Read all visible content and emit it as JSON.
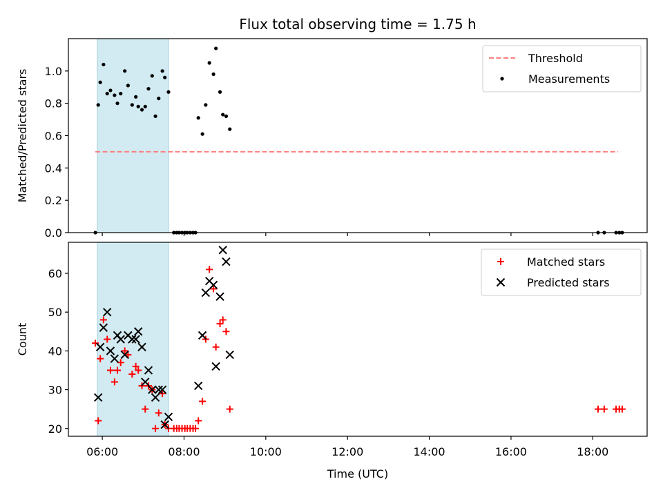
{
  "chart_data": {
    "type": "scatter",
    "title": "Flux total observing time = 1.75 h",
    "xlabel": "Time (UTC)",
    "x_unit": "hours UTC",
    "xlim": [
      5.17,
      19.33
    ],
    "x_ticks": [
      6,
      8,
      10,
      12,
      14,
      16,
      18
    ],
    "x_tick_labels": [
      "06:00",
      "08:00",
      "10:00",
      "12:00",
      "14:00",
      "16:00",
      "18:00"
    ],
    "shaded_interval": {
      "x": [
        5.88,
        7.62
      ],
      "color": "#add8e6"
    },
    "panels": [
      {
        "ylabel": "Matched/Predicted stars",
        "ylim": [
          0,
          1.2
        ],
        "y_ticks": [
          0.0,
          0.2,
          0.4,
          0.6,
          0.8,
          1.0
        ],
        "y_tick_labels": [
          "0.0",
          "0.2",
          "0.4",
          "0.6",
          "0.8",
          "1.0"
        ],
        "legend": {
          "placement": "upper right",
          "entries": [
            "Threshold",
            "Measurements"
          ]
        },
        "series": [
          {
            "name": "Threshold",
            "kind": "dashed-line",
            "color": "#ff7f7f",
            "x": [
              5.83,
              18.62
            ],
            "y": [
              0.5,
              0.5
            ]
          },
          {
            "name": "Measurements",
            "kind": "dots",
            "color": "#000000",
            "x": [
              5.83,
              5.9,
              5.95,
              6.03,
              6.12,
              6.2,
              6.3,
              6.37,
              6.45,
              6.55,
              6.63,
              6.73,
              6.82,
              6.88,
              6.97,
              7.05,
              7.13,
              7.22,
              7.3,
              7.38,
              7.47,
              7.53,
              7.62,
              7.75,
              7.82,
              7.88,
              7.95,
              8.02,
              8.08,
              8.15,
              8.22,
              8.28,
              8.35,
              8.45,
              8.53,
              8.62,
              8.72,
              8.78,
              8.88,
              8.95,
              9.03,
              9.12,
              18.13,
              18.28,
              18.57,
              18.65,
              18.72
            ],
            "y": [
              0.0,
              0.79,
              0.93,
              1.04,
              0.86,
              0.88,
              0.85,
              0.8,
              0.86,
              1.0,
              0.91,
              0.79,
              0.84,
              0.78,
              0.76,
              0.78,
              0.89,
              0.97,
              0.72,
              0.83,
              1.0,
              0.96,
              0.87,
              0.0,
              0.0,
              0.0,
              0.0,
              0.0,
              0.0,
              0.0,
              0.0,
              0.0,
              0.71,
              0.61,
              0.79,
              1.05,
              0.98,
              1.14,
              0.87,
              0.73,
              0.72,
              0.64,
              0.0,
              0.0,
              0.0,
              0.0,
              0.0
            ]
          }
        ]
      },
      {
        "ylabel": "Count",
        "ylim": [
          18,
          68
        ],
        "y_ticks": [
          20,
          30,
          40,
          50,
          60
        ],
        "y_tick_labels": [
          "20",
          "30",
          "40",
          "50",
          "60"
        ],
        "legend": {
          "placement": "upper right",
          "entries": [
            "Matched stars",
            "Predicted stars"
          ]
        },
        "series": [
          {
            "name": "Matched stars",
            "kind": "plus",
            "color": "#ff0000",
            "x": [
              5.83,
              5.9,
              5.95,
              6.03,
              6.12,
              6.2,
              6.3,
              6.37,
              6.45,
              6.55,
              6.63,
              6.73,
              6.82,
              6.88,
              6.97,
              7.05,
              7.13,
              7.22,
              7.3,
              7.38,
              7.47,
              7.53,
              7.62,
              7.75,
              7.82,
              7.88,
              7.95,
              8.02,
              8.08,
              8.15,
              8.22,
              8.28,
              8.35,
              8.45,
              8.53,
              8.62,
              8.72,
              8.78,
              8.88,
              8.95,
              9.03,
              9.12,
              18.13,
              18.28,
              18.57,
              18.65,
              18.72
            ],
            "y": [
              42,
              22,
              38,
              48,
              43,
              35,
              32,
              35,
              37,
              40,
              39,
              34,
              36,
              35,
              31,
              25,
              31,
              30,
              20,
              24,
              29,
              21,
              20,
              20,
              20,
              20,
              20,
              20,
              20,
              20,
              20,
              20,
              22,
              27,
              43,
              61,
              56,
              41,
              47,
              48,
              45,
              25,
              25,
              25,
              25,
              25,
              25
            ]
          },
          {
            "name": "Predicted stars",
            "kind": "x",
            "color": "#000000",
            "x": [
              5.9,
              5.95,
              6.03,
              6.12,
              6.2,
              6.3,
              6.37,
              6.45,
              6.55,
              6.63,
              6.73,
              6.82,
              6.88,
              6.97,
              7.05,
              7.13,
              7.22,
              7.3,
              7.38,
              7.47,
              7.53,
              7.62,
              8.35,
              8.45,
              8.53,
              8.62,
              8.72,
              8.78,
              8.88,
              8.95,
              9.03,
              9.12
            ],
            "y": [
              28,
              41,
              46,
              50,
              40,
              38,
              44,
              43,
              39,
              44,
              43,
              43,
              45,
              41,
              32,
              35,
              30,
              28,
              30,
              30,
              21,
              23,
              31,
              44,
              55,
              58,
              57,
              36,
              54,
              66,
              63,
              39
            ]
          }
        ]
      }
    ]
  }
}
